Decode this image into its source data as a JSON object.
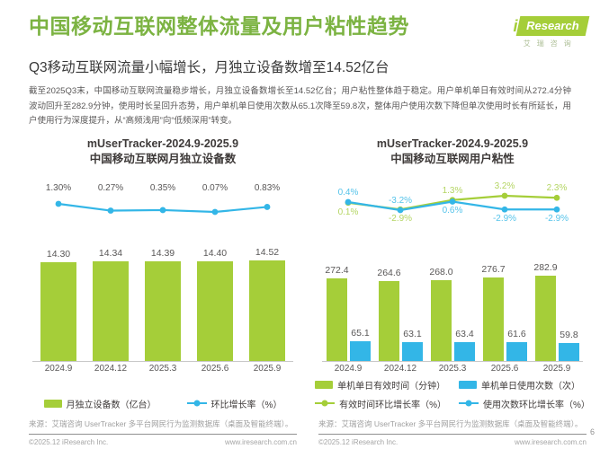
{
  "page": {
    "title": "中国移动互联网整体流量及用户粘性趋势",
    "subtitle": "Q3移动互联网流量小幅增长，月独立设备数增至14.52亿台",
    "paragraph": "截至2025Q3末，中国移动互联网流量稳步增长，月独立设备数增长至14.52亿台；用户粘性整体趋于稳定。用户单机单日有效时间从272.4分钟波动回升至282.9分钟，使用时长呈回升态势，用户单机单日使用次数从65.1次降至59.8次，整体用户使用次数下降但单次使用时长有所延长，用户使用行为深度提升，从“高频浅用”向“低频深用”转变。",
    "page_number": "6"
  },
  "logo": {
    "i": "i",
    "research": "Research",
    "chinese": "艾瑞咨询"
  },
  "colors": {
    "title_green": "#7cb342",
    "bar_green": "#a5ce39",
    "line_blue": "#33b6e7"
  },
  "source_note": "来源：艾瑞咨询 UserTracker 多平台网民行为监测数据库（桌面及智能终端）。",
  "footer": {
    "copyright": "©2025.12 iResearch Inc.",
    "website": "www.iresearch.com.cn"
  },
  "chart_data": [
    {
      "type": "bar",
      "title_line1": "mUserTracker-2024.9-2025.9",
      "title_line2": "中国移动互联网月独立设备数",
      "categories": [
        "2024.9",
        "2024.12",
        "2025.3",
        "2025.6",
        "2025.9"
      ],
      "bar_series": [
        {
          "name": "月独立设备数（亿台）",
          "values": [
            14.3,
            14.34,
            14.39,
            14.4,
            14.52
          ],
          "labels": [
            "14.30",
            "14.34",
            "14.39",
            "14.40",
            "14.52"
          ],
          "color": "#a5ce39"
        }
      ],
      "line_series": [
        {
          "name": "环比增长率（%）",
          "values": [
            1.3,
            0.27,
            0.35,
            0.07,
            0.83
          ],
          "labels": [
            "1.30%",
            "0.27%",
            "0.35%",
            "0.07%",
            "0.83%"
          ],
          "color": "#33b6e7",
          "label_color": "#595757",
          "label_side": [
            "row",
            "row",
            "row",
            "row",
            "row"
          ]
        }
      ],
      "legend": [
        {
          "label": "月独立设备数（亿台）",
          "type": "bar",
          "color": "#a5ce39"
        },
        {
          "label": "环比增长率（%）",
          "type": "line",
          "color": "#33b6e7"
        }
      ],
      "grid": false,
      "legend_position": "bottom"
    },
    {
      "type": "bar",
      "title_line1": "mUserTracker-2024.9-2025.9",
      "title_line2": "中国移动互联网用户粘性",
      "categories": [
        "2024.9",
        "2024.12",
        "2025.3",
        "2025.6",
        "2025.9"
      ],
      "bar_series": [
        {
          "name": "单机单日有效时间（分钟）",
          "values": [
            272.4,
            264.6,
            268.0,
            276.7,
            282.9
          ],
          "labels": [
            "272.4",
            "264.6",
            "268.0",
            "276.7",
            "282.9"
          ],
          "color": "#a5ce39"
        },
        {
          "name": "单机单日使用次数（次）",
          "values": [
            65.1,
            63.1,
            63.4,
            61.6,
            59.8
          ],
          "labels": [
            "65.1",
            "63.1",
            "63.4",
            "61.6",
            "59.8"
          ],
          "color": "#33b6e7"
        }
      ],
      "line_series": [
        {
          "name": "有效时间环比增长率（%）",
          "values": [
            0.1,
            -2.9,
            1.3,
            3.2,
            2.3
          ],
          "labels": [
            "0.1%",
            "-2.9%",
            "1.3%",
            "3.2%",
            "2.3%"
          ],
          "color": "#a5ce39",
          "label_color": "#b4d563",
          "label_side": [
            "below",
            "below",
            "above",
            "above",
            "above"
          ]
        },
        {
          "name": "使用次数环比增长率（%）",
          "values": [
            0.4,
            -3.2,
            0.6,
            -2.9,
            -2.9
          ],
          "labels": [
            "0.4%",
            "-3.2%",
            "0.6%",
            "-2.9%",
            "-2.9%"
          ],
          "color": "#33b6e7",
          "label_color": "#55c3ea",
          "label_side": [
            "above",
            "above",
            "below",
            "below",
            "below"
          ]
        }
      ],
      "legend": [
        {
          "label": "单机单日有效时间（分钟）",
          "type": "bar",
          "color": "#a5ce39"
        },
        {
          "label": "单机单日使用次数（次）",
          "type": "bar",
          "color": "#33b6e7"
        },
        {
          "label": "有效时间环比增长率（%）",
          "type": "line",
          "color": "#a5ce39"
        },
        {
          "label": "使用次数环比增长率（%）",
          "type": "line",
          "color": "#33b6e7"
        }
      ],
      "grid": false,
      "legend_position": "bottom"
    }
  ]
}
